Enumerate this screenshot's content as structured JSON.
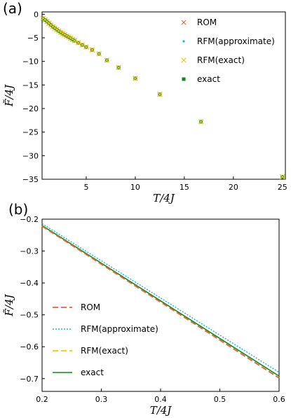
{
  "panels": {
    "a": {
      "label": "(a)"
    },
    "b": {
      "label": "(b)"
    }
  },
  "colors": {
    "rom": "#e8603c",
    "rfm_approx": "#19b7d4",
    "rfm_exact": "#f6c800",
    "exact": "#0b8a16"
  },
  "chart_data": [
    {
      "type": "scatter",
      "xlabel": "T/4J",
      "ylabel": "F̃/4J",
      "xlim": [
        0.5,
        25.3
      ],
      "ylim": [
        -35,
        0.5
      ],
      "xticks": [
        5,
        10,
        15,
        20,
        25
      ],
      "yticks": [
        0,
        -5,
        -10,
        -15,
        -20,
        -25,
        -30,
        -35
      ],
      "legend_position": "top-right",
      "series": [
        {
          "name": "ROM",
          "marker": "x"
        },
        {
          "name": "RFM(approximate)",
          "marker": "dot"
        },
        {
          "name": "RFM(exact)",
          "marker": "x"
        },
        {
          "name": "exact",
          "marker": "square"
        }
      ],
      "x": [
        0.6,
        0.8,
        1.0,
        1.2,
        1.4,
        1.6,
        1.8,
        2.0,
        2.2,
        2.4,
        2.6,
        2.8,
        3.0,
        3.2,
        3.4,
        3.6,
        3.8,
        4.2,
        4.6,
        5.0,
        5.6,
        6.3,
        7.1,
        8.3,
        10.0,
        12.5,
        16.7,
        25.0
      ],
      "y": [
        -0.9,
        -1.2,
        -1.55,
        -1.9,
        -2.3,
        -2.65,
        -2.95,
        -3.25,
        -3.55,
        -3.85,
        -4.1,
        -4.35,
        -4.6,
        -4.85,
        -5.1,
        -5.35,
        -5.6,
        -6.05,
        -6.5,
        -6.95,
        -7.55,
        -8.4,
        -9.75,
        -11.3,
        -13.6,
        -17.0,
        -22.8,
        -34.5
      ]
    },
    {
      "type": "line",
      "xlabel": "T/4J",
      "ylabel": "F̃/4J",
      "xlim": [
        0.2,
        0.6
      ],
      "ylim": [
        -0.74,
        -0.2
      ],
      "xticks": [
        0.2,
        0.3,
        0.4,
        0.5,
        0.6
      ],
      "yticks": [
        -0.2,
        -0.3,
        -0.4,
        -0.5,
        -0.6,
        -0.7
      ],
      "legend_position": "bottom-left",
      "series": [
        {
          "name": "ROM",
          "style": "dashed",
          "x": [
            0.2,
            0.6
          ],
          "y": [
            -0.222,
            -0.698
          ]
        },
        {
          "name": "RFM(approximate)",
          "style": "dotted",
          "x": [
            0.2,
            0.6
          ],
          "y": [
            -0.214,
            -0.68
          ]
        },
        {
          "name": "RFM(exact)",
          "style": "dashed",
          "x": [
            0.2,
            0.6
          ],
          "y": [
            -0.222,
            -0.698
          ]
        },
        {
          "name": "exact",
          "style": "solid",
          "x": [
            0.2,
            0.6
          ],
          "y": [
            -0.22,
            -0.692
          ]
        }
      ]
    }
  ]
}
